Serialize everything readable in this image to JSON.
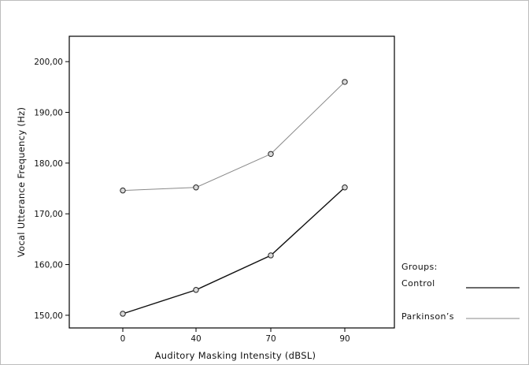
{
  "chart_data": {
    "type": "line",
    "title": "",
    "xlabel": "Auditory Masking Intensity (dBSL)",
    "ylabel": "Vocal Utterance Frequency (Hz)",
    "categories": [
      "0",
      "40",
      "70",
      "90"
    ],
    "y_ticks": [
      "150,00",
      "160,00",
      "170,00",
      "180,00",
      "190,00",
      "200,00"
    ],
    "y_tick_values": [
      150,
      160,
      170,
      180,
      190,
      200
    ],
    "ylim": [
      147.5,
      205
    ],
    "grid": false,
    "legend_position": "bottom-right, outside plot",
    "legend_title": "Groups:",
    "series": [
      {
        "name": "Control",
        "values": [
          150.3,
          155.0,
          161.8,
          175.2
        ],
        "color": "#111111"
      },
      {
        "name": "Parkinson’s",
        "values": [
          174.6,
          175.2,
          181.8,
          196.0
        ],
        "color": "#8a8a8a"
      }
    ]
  }
}
